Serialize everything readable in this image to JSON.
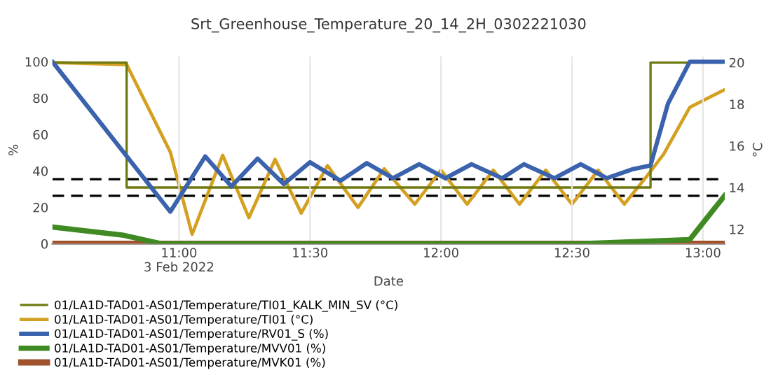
{
  "chart_data": {
    "type": "line",
    "title": "Srt_Greenhouse_Temperature_20_14_2H_0302221030",
    "xlabel": "Date",
    "ylabel": "%",
    "y2label": "°C",
    "xlim": [
      "2022-02-03T10:31",
      "2022-02-03T13:05"
    ],
    "xticks": [
      {
        "value": "2022-02-03T11:00",
        "label": "11:00\n3 Feb 2022"
      },
      {
        "value": "2022-02-03T11:30",
        "label": "11:30"
      },
      {
        "value": "2022-02-03T12:00",
        "label": "12:00"
      },
      {
        "value": "2022-02-03T12:30",
        "label": "12:30"
      },
      {
        "value": "2022-02-03T13:00",
        "label": "13:00"
      }
    ],
    "ylim": [
      0,
      103
    ],
    "yticks": [
      0,
      20,
      40,
      60,
      80,
      100
    ],
    "y2lim": [
      11.3,
      20.3
    ],
    "y2ticks": [
      12,
      14,
      16,
      18,
      20
    ],
    "grid": "x",
    "legend": "bottom",
    "marker": "none",
    "line_style": "solid",
    "ref_lines": [
      {
        "axis": "y2",
        "value": 14.4,
        "color": "#000000",
        "line_style": "dashed"
      },
      {
        "axis": "y2",
        "value": 13.6,
        "color": "#000000",
        "line_style": "dashed"
      }
    ],
    "series": [
      {
        "name": "01/LA1D-TAD01-AS01/Temperature/TI01_KALK_MIN_SV (°C)",
        "color": "#6f7a12",
        "axis": "y2",
        "x": [
          "2022-02-03T10:31",
          "2022-02-03T10:48",
          "2022-02-03T10:48",
          "2022-02-03T12:48",
          "2022-02-03T12:48",
          "2022-02-03T13:05"
        ],
        "values": [
          20,
          20,
          14,
          14,
          20,
          20
        ]
      },
      {
        "name": "01/LA1D-TAD01-AS01/Temperature/TI01 (°C)",
        "color": "#d4a020",
        "axis": "y2",
        "x": [
          "2022-02-03T10:31",
          "2022-02-03T10:48",
          "2022-02-03T10:58",
          "2022-02-03T11:03",
          "2022-02-03T11:10",
          "2022-02-03T11:16",
          "2022-02-03T11:22",
          "2022-02-03T11:28",
          "2022-02-03T11:34",
          "2022-02-03T11:41",
          "2022-02-03T11:47",
          "2022-02-03T11:54",
          "2022-02-03T12:00",
          "2022-02-03T12:06",
          "2022-02-03T12:12",
          "2022-02-03T12:18",
          "2022-02-03T12:24",
          "2022-02-03T12:30",
          "2022-02-03T12:36",
          "2022-02-03T12:42",
          "2022-02-03T12:47",
          "2022-02-03T12:51",
          "2022-02-03T12:57",
          "2022-02-03T13:05"
        ],
        "values": [
          20.0,
          19.9,
          15.7,
          11.75,
          15.55,
          12.55,
          15.35,
          12.77,
          15.05,
          13.04,
          14.9,
          13.2,
          14.83,
          13.2,
          14.83,
          13.2,
          14.83,
          13.2,
          14.83,
          13.2,
          14.5,
          15.6,
          17.85,
          18.7
        ]
      },
      {
        "name": "01/LA1D-TAD01-AS01/Temperature/RV01_S (%)",
        "color": "#3a62ad",
        "x": [
          "2022-02-03T10:31",
          "2022-02-03T10:58",
          "2022-02-03T11:06",
          "2022-02-03T11:12",
          "2022-02-03T11:18",
          "2022-02-03T11:24",
          "2022-02-03T11:30",
          "2022-02-03T11:37",
          "2022-02-03T11:43",
          "2022-02-03T11:49",
          "2022-02-03T11:55",
          "2022-02-03T12:01",
          "2022-02-03T12:07",
          "2022-02-03T12:14",
          "2022-02-03T12:19",
          "2022-02-03T12:26",
          "2022-02-03T12:32",
          "2022-02-03T12:38",
          "2022-02-03T12:44",
          "2022-02-03T12:48",
          "2022-02-03T12:52",
          "2022-02-03T12:57",
          "2022-02-03T13:05"
        ],
        "values": [
          100,
          17.6,
          48,
          31.5,
          46.8,
          32.8,
          44.8,
          34.6,
          44.3,
          36,
          43.7,
          36,
          43.7,
          36,
          43.7,
          36,
          43.7,
          36,
          41,
          43,
          77,
          100,
          100
        ]
      },
      {
        "name": "01/LA1D-TAD01-AS01/Temperature/MVV01 (%)",
        "color": "#3f8a22",
        "x": [
          "2022-02-03T10:31",
          "2022-02-03T10:47",
          "2022-02-03T10:56",
          "2022-02-03T12:31",
          "2022-02-03T12:57",
          "2022-02-03T13:05"
        ],
        "values": [
          9.2,
          4.8,
          0,
          0,
          2.3,
          26.5
        ]
      },
      {
        "name": "01/LA1D-TAD01-AS01/Temperature/MVK01 (%)",
        "color": "#a0522d",
        "x": [
          "2022-02-03T10:31",
          "2022-02-03T13:05"
        ],
        "values": [
          0,
          0
        ]
      }
    ]
  }
}
